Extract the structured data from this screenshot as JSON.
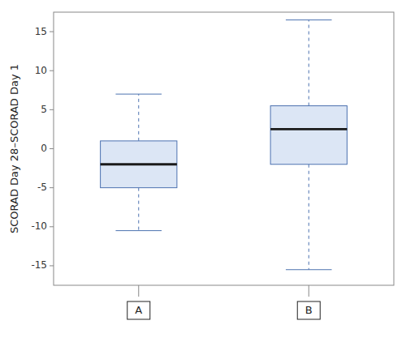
{
  "chart_data": {
    "type": "box",
    "categories": [
      "A",
      "B"
    ],
    "boxes": [
      {
        "q1": -5.0,
        "median": -2.0,
        "q3": 1.0,
        "whisker_low": -10.5,
        "whisker_high": 7.0
      },
      {
        "q1": -2.0,
        "median": 2.5,
        "q3": 5.5,
        "whisker_low": -15.5,
        "whisker_high": 16.5
      }
    ],
    "ylabel": "SCORAD Day 28–SCORAD Day 1",
    "ylim": [
      -17.5,
      17.5
    ],
    "yticks": [
      -15,
      -10,
      -5,
      0,
      5,
      10,
      15
    ],
    "grid": false
  }
}
